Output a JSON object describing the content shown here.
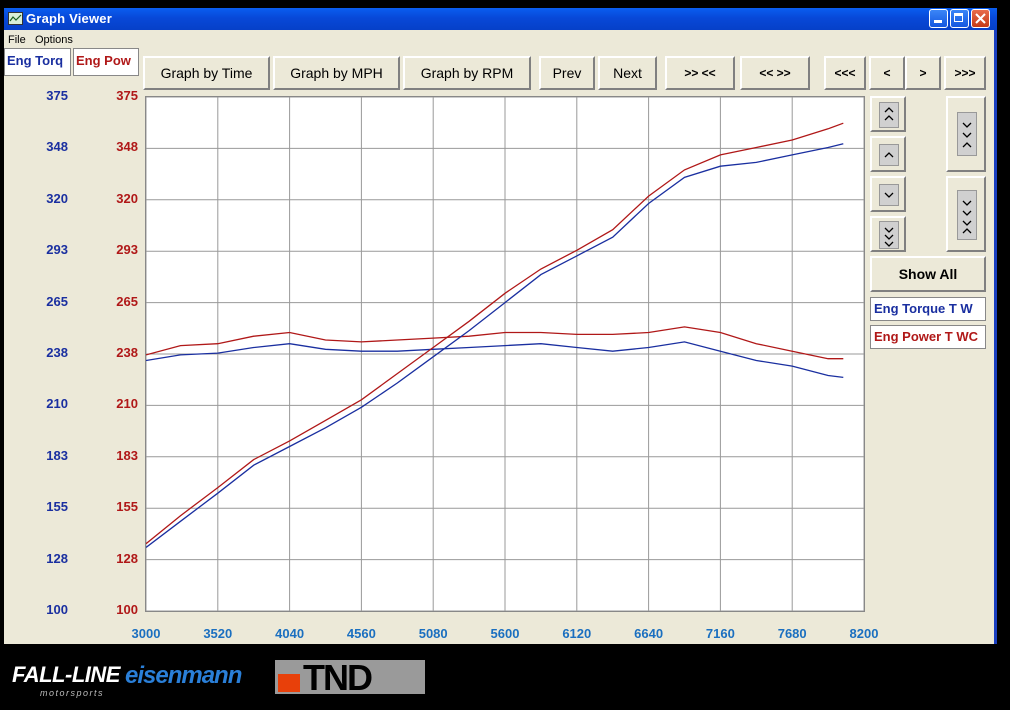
{
  "window": {
    "title": "Graph Viewer"
  },
  "menu": [
    "File",
    "Options"
  ],
  "channel_tabs": [
    {
      "label": "Eng Torq",
      "color": "#1a2fa0"
    },
    {
      "label": "Eng Pow",
      "color": "#b01818"
    }
  ],
  "toolbar": {
    "graph_by_time": "Graph by Time",
    "graph_by_mph": "Graph by MPH",
    "graph_by_rpm": "Graph by RPM",
    "prev": "Prev",
    "next": "Next",
    "zoom_in": ">> <<",
    "zoom_out": "<< >>",
    "far_left": "<<<",
    "left": "<",
    "right": ">",
    "far_right": ">>>"
  },
  "side": {
    "show_all": "Show All",
    "up_fast": "^\n^",
    "up": "^",
    "down": "v",
    "down_fast": "v\nv\nv",
    "right_top": "v\n^",
    "right_bottom": "v\nv\n^"
  },
  "legend": [
    {
      "label": "Eng Torque T W",
      "color": "#1a2fa0"
    },
    {
      "label": "Eng Power T WC",
      "color": "#b01818"
    }
  ],
  "chart_data": {
    "type": "line",
    "x_ticks": [
      "3000",
      "3520",
      "4040",
      "4560",
      "5080",
      "5600",
      "6120",
      "6640",
      "7160",
      "7680",
      "8200"
    ],
    "y_ticks_left": [
      "375",
      "348",
      "320",
      "293",
      "265",
      "238",
      "210",
      "183",
      "155",
      "128",
      "100"
    ],
    "y_ticks_right": [
      "375",
      "348",
      "320",
      "293",
      "265",
      "238",
      "210",
      "183",
      "155",
      "128",
      "100"
    ],
    "xlim": [
      3000,
      8200
    ],
    "ylim": [
      100,
      375
    ],
    "grid": true,
    "series": [
      {
        "name": "Eng Torque T W",
        "color": "#1a2fa0",
        "x": [
          3000,
          3250,
          3520,
          3780,
          4040,
          4300,
          4560,
          4820,
          5080,
          5340,
          5600,
          5860,
          6120,
          6380,
          6640,
          6900,
          7160,
          7420,
          7680,
          7940,
          8050
        ],
        "y": [
          234,
          237,
          238,
          241,
          243,
          240,
          239,
          239,
          240,
          241,
          242,
          243,
          241,
          239,
          241,
          244,
          239,
          234,
          231,
          226,
          225
        ]
      },
      {
        "name": "Eng Power T WC",
        "color": "#b01818",
        "x": [
          3000,
          3250,
          3520,
          3780,
          4040,
          4300,
          4560,
          4820,
          5080,
          5340,
          5600,
          5860,
          6120,
          6380,
          6640,
          6900,
          7160,
          7420,
          7680,
          7940,
          8050
        ],
        "y": [
          237,
          242,
          243,
          247,
          249,
          245,
          244,
          245,
          246,
          247,
          249,
          249,
          248,
          248,
          249,
          252,
          249,
          243,
          239,
          235,
          235
        ]
      },
      {
        "name": "Eng Torque T W",
        "color": "#1a2fa0",
        "x": [
          3000,
          3250,
          3520,
          3780,
          4040,
          4300,
          4560,
          4820,
          5080,
          5340,
          5600,
          5860,
          6120,
          6380,
          6640,
          6900,
          7160,
          7420,
          7680,
          7940,
          8050
        ],
        "y": [
          134,
          148,
          163,
          178,
          188,
          198,
          209,
          222,
          236,
          250,
          265,
          280,
          290,
          300,
          318,
          332,
          338,
          340,
          344,
          348,
          350
        ]
      },
      {
        "name": "Eng Power T WC",
        "color": "#b01818",
        "x": [
          3000,
          3250,
          3520,
          3780,
          4040,
          4300,
          4560,
          4820,
          5080,
          5340,
          5600,
          5860,
          6120,
          6380,
          6640,
          6900,
          7160,
          7420,
          7680,
          7940,
          8050
        ],
        "y": [
          136,
          151,
          166,
          181,
          191,
          202,
          213,
          227,
          241,
          255,
          270,
          283,
          293,
          304,
          322,
          336,
          344,
          348,
          352,
          358,
          361
        ]
      }
    ]
  },
  "footer": {
    "logo1": "FALL-LINE",
    "logo1_sub": "motorsports",
    "logo2": "eisenmann",
    "logo3": "TND"
  }
}
